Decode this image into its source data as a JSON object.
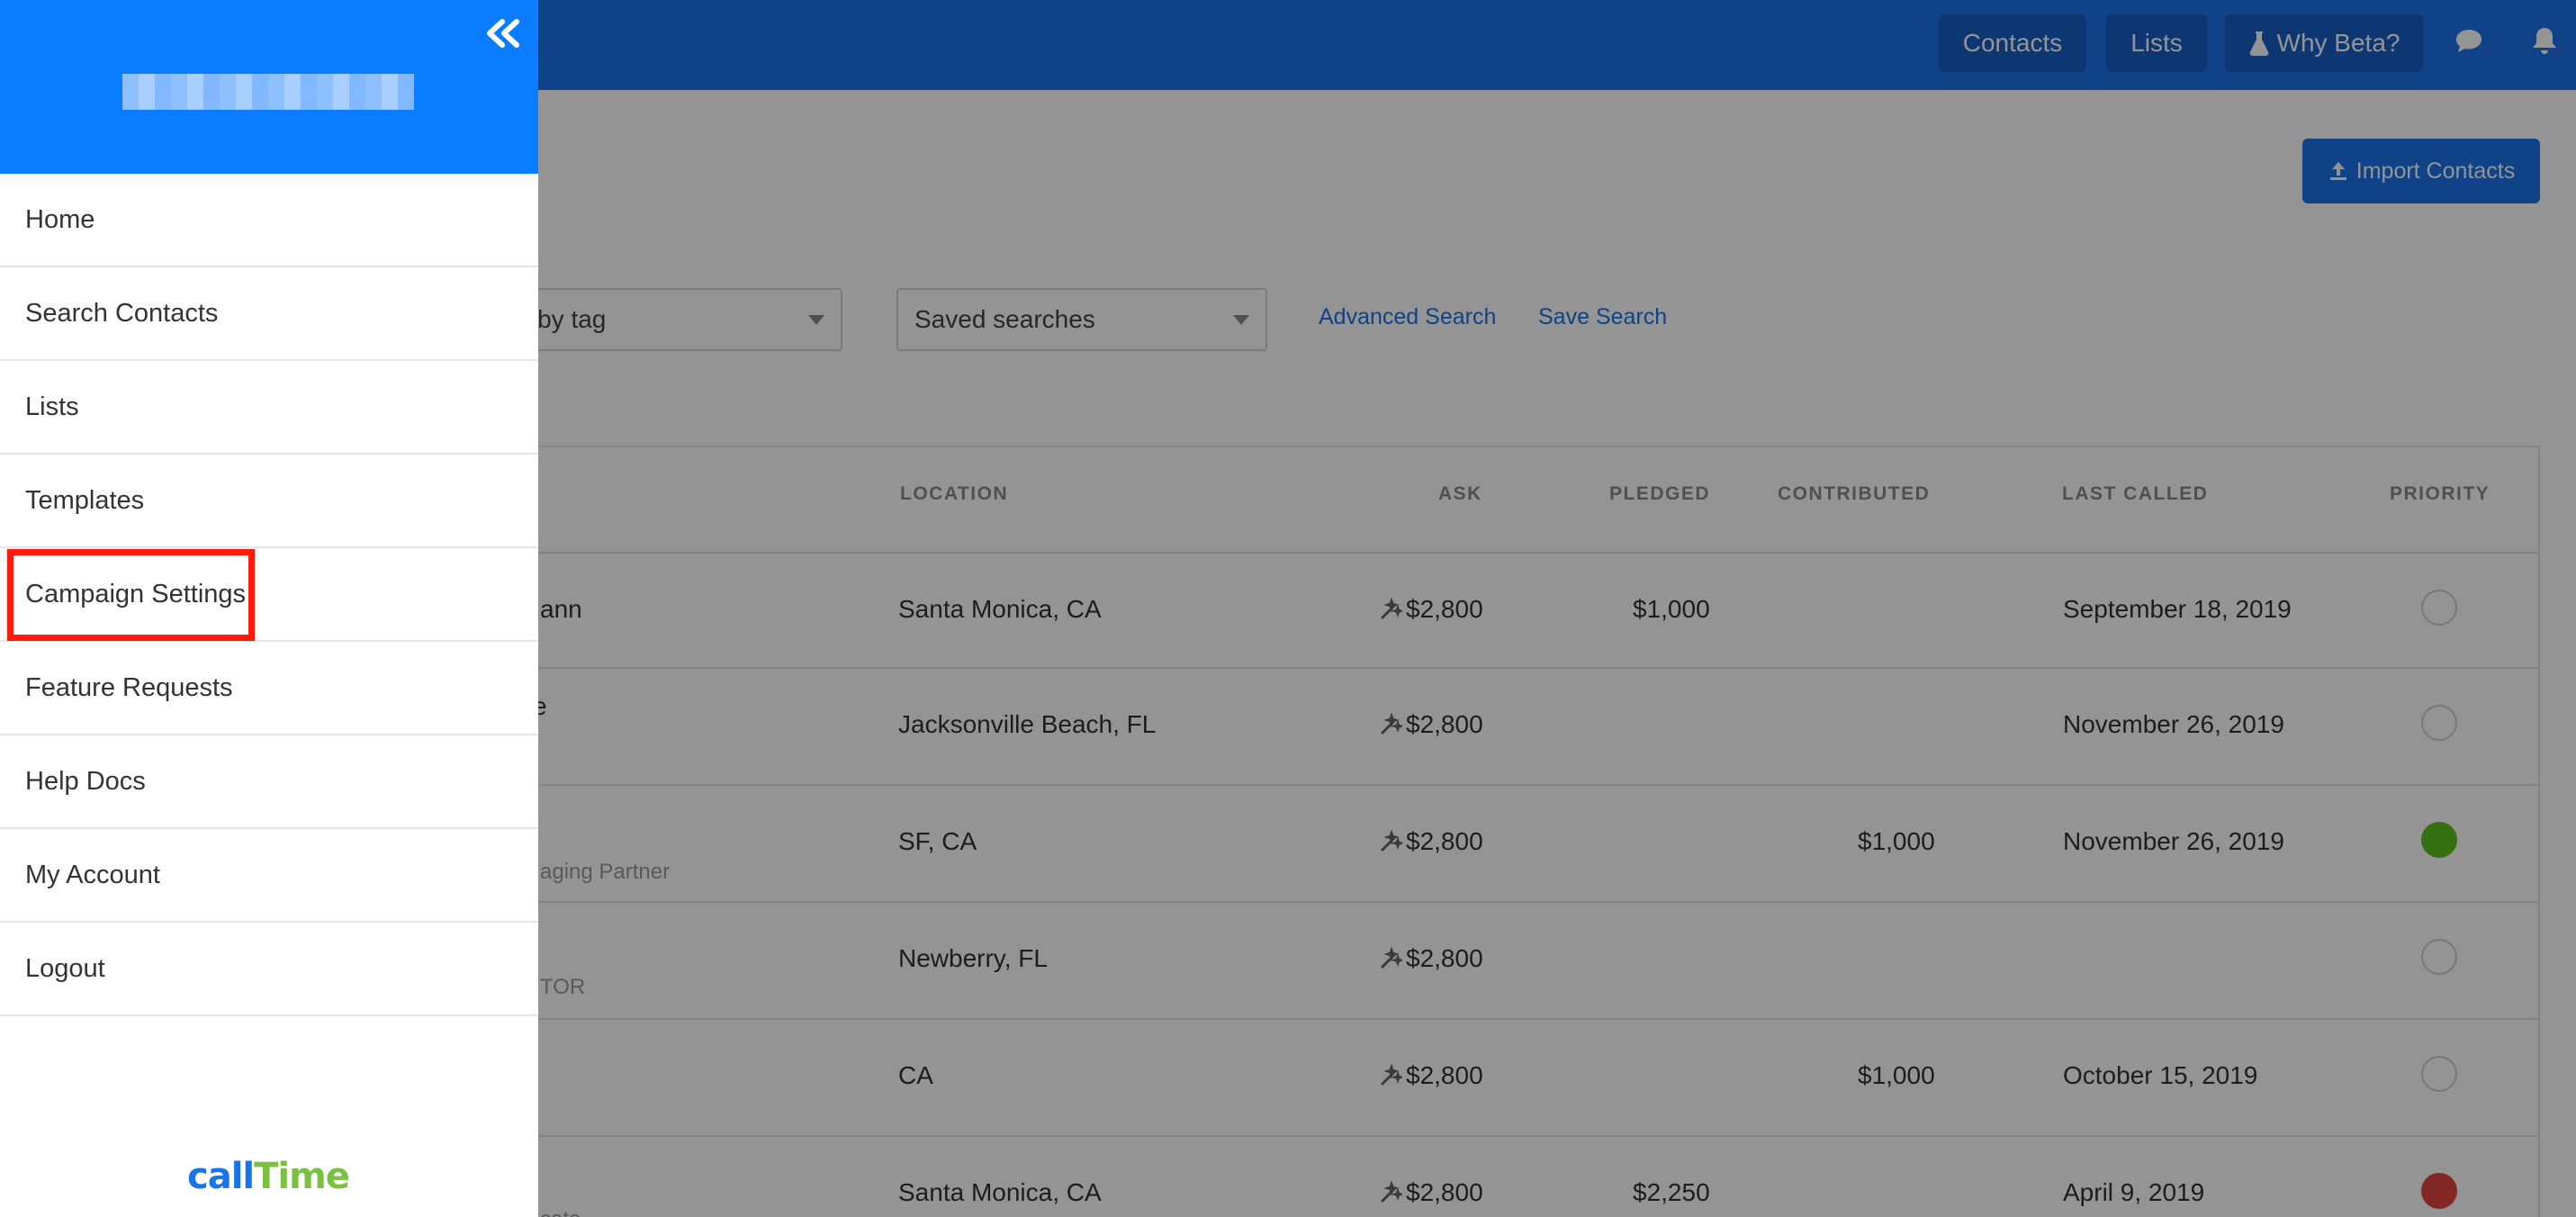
{
  "topbar": {
    "nav": [
      "Contacts",
      "Lists",
      "Why Beta?"
    ],
    "icons": [
      "chat-icon",
      "bell-icon"
    ]
  },
  "page": {
    "import_label": "Import Contacts",
    "tag_filter_text": "r by tag",
    "saved_searches": "Saved searches",
    "advanced_search": "Advanced Search",
    "save_search": "Save Search"
  },
  "table": {
    "headers": [
      "LOCATION",
      "ASK",
      "PLEDGED",
      "CONTRIBUTED",
      "LAST CALLED",
      "PRIORITY"
    ],
    "rows": [
      {
        "name": "ann",
        "sub": "",
        "location": "Santa Monica, CA",
        "ask": "$2,800",
        "pledged": "$1,000",
        "contributed": "",
        "last_called": "September 18, 2019",
        "priority": "none"
      },
      {
        "name": "e",
        "sub": "",
        "location": "Jacksonville Beach, FL",
        "ask": "$2,800",
        "pledged": "",
        "contributed": "",
        "last_called": "November 26, 2019",
        "priority": "none"
      },
      {
        "name": "",
        "sub": "aging Partner",
        "location": "SF, CA",
        "ask": "$2,800",
        "pledged": "",
        "contributed": "$1,000",
        "last_called": "November 26, 2019",
        "priority": "green"
      },
      {
        "name": "",
        "sub": "TOR",
        "location": "Newberry, FL",
        "ask": "$2,800",
        "pledged": "",
        "contributed": "",
        "last_called": "",
        "priority": "none"
      },
      {
        "name": "",
        "sub": "",
        "location": "CA",
        "ask": "$2,800",
        "pledged": "",
        "contributed": "$1,000",
        "last_called": "October 15, 2019",
        "priority": "none"
      },
      {
        "name": "",
        "sub": "cate",
        "location": "Santa Monica, CA",
        "ask": "$2,800",
        "pledged": "$2,250",
        "contributed": "",
        "last_called": "April 9, 2019",
        "priority": "red"
      }
    ]
  },
  "sidebar": {
    "items": [
      "Home",
      "Search Contacts",
      "Lists",
      "Templates",
      "Campaign Settings",
      "Feature Requests",
      "Help Docs",
      "My Account",
      "Logout"
    ],
    "highlighted": "Campaign Settings",
    "logo_part1": "call",
    "logo_part2": "Time"
  },
  "colors": {
    "brand_blue": "#1a73e8",
    "sidebar_header": "#0a7cff",
    "highlight_red": "#ff1a0a",
    "priority_green": "#5bbf1f",
    "priority_red": "#e0463f"
  }
}
